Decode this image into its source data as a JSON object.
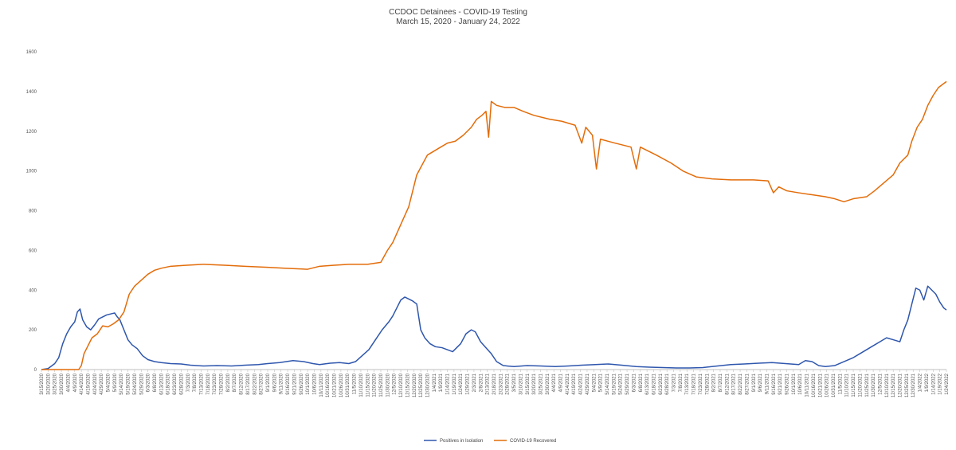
{
  "chart_data": {
    "type": "line",
    "title": "CCDOC Detainees - COVID-19 Testing",
    "subtitle": "March 15, 2020 - January 24, 2022",
    "xlabel": "",
    "ylabel": "",
    "x_range": [
      "3/15/2020",
      "1/24/2022"
    ],
    "ylim": [
      0,
      1600
    ],
    "y_ticks": [
      "0",
      "200",
      "400",
      "600",
      "800",
      "1000",
      "1200",
      "1400",
      "1600"
    ],
    "grid": false,
    "legend_position": "bottom",
    "x_tick_labels": [
      "3/15/2020",
      "3/20/2020",
      "3/25/2020",
      "3/30/2020",
      "4/4/2020",
      "4/9/2020",
      "4/14/2020",
      "4/19/2020",
      "4/24/2020",
      "4/29/2020",
      "5/4/2020",
      "5/9/2020",
      "5/14/2020",
      "5/19/2020",
      "5/24/2020",
      "5/29/2020",
      "6/3/2020",
      "6/8/2020",
      "6/13/2020",
      "6/18/2020",
      "6/23/2020",
      "6/28/2020",
      "7/3/2020",
      "7/8/2020",
      "7/13/2020",
      "7/18/2020",
      "7/23/2020",
      "7/28/2020",
      "8/2/2020",
      "8/7/2020",
      "8/12/2020",
      "8/17/2020",
      "8/22/2020",
      "8/27/2020",
      "9/1/2020",
      "9/6/2020",
      "9/11/2020",
      "9/16/2020",
      "9/21/2020",
      "9/26/2020",
      "10/1/2020",
      "10/6/2020",
      "10/11/2020",
      "10/16/2020",
      "10/21/2020",
      "10/26/2020",
      "10/31/2020",
      "11/5/2020",
      "11/10/2020",
      "11/15/2020",
      "11/20/2020",
      "11/25/2020",
      "11/30/2020",
      "12/5/2020",
      "12/10/2020",
      "12/15/2020",
      "12/20/2020",
      "12/25/2020",
      "12/30/2020",
      "1/4/2021",
      "1/9/2021",
      "1/14/2021",
      "1/19/2021",
      "1/24/2021",
      "1/29/2021",
      "2/3/2021",
      "2/8/2021",
      "2/13/2021",
      "2/18/2021",
      "2/23/2021",
      "2/28/2021",
      "3/5/2021",
      "3/10/2021",
      "3/15/2021",
      "3/20/2021",
      "3/25/2021",
      "3/30/2021",
      "4/4/2021",
      "4/9/2021",
      "4/14/2021",
      "4/19/2021",
      "4/24/2021",
      "4/29/2021",
      "5/4/2021",
      "5/9/2021",
      "5/14/2021",
      "5/19/2021",
      "5/24/2021",
      "5/29/2021",
      "6/3/2021",
      "6/8/2021",
      "6/13/2021",
      "6/18/2021",
      "6/23/2021",
      "6/28/2021",
      "7/3/2021",
      "7/8/2021",
      "7/13/2021",
      "7/18/2021",
      "7/23/2021",
      "7/28/2021",
      "8/2/2021",
      "8/7/2021",
      "8/12/2021",
      "8/17/2021",
      "8/22/2021",
      "8/27/2021",
      "9/1/2021",
      "9/6/2021",
      "9/11/2021",
      "9/16/2021",
      "9/21/2021",
      "9/26/2021",
      "10/1/2021",
      "10/6/2021",
      "10/11/2021",
      "10/16/2021",
      "10/21/2021",
      "10/26/2021",
      "10/31/2021",
      "11/5/2021",
      "11/10/2021",
      "11/15/2021",
      "11/20/2021",
      "11/25/2021",
      "11/30/2021",
      "12/5/2021",
      "12/10/2021",
      "12/15/2021",
      "12/20/2021",
      "12/25/2021",
      "12/30/2021",
      "1/4/2022",
      "1/9/2022",
      "1/14/2022",
      "1/19/2022",
      "1/24/2022"
    ],
    "series": [
      {
        "name": "Positives in Isolation",
        "color": "#2e56ad",
        "points": [
          [
            "3/15/2020",
            0
          ],
          [
            "3/20/2020",
            5
          ],
          [
            "3/25/2020",
            30
          ],
          [
            "3/28/2020",
            60
          ],
          [
            "3/31/2020",
            130
          ],
          [
            "4/3/2020",
            180
          ],
          [
            "4/6/2020",
            215
          ],
          [
            "4/9/2020",
            240
          ],
          [
            "4/11/2020",
            290
          ],
          [
            "4/13/2020",
            305
          ],
          [
            "4/15/2020",
            250
          ],
          [
            "4/18/2020",
            215
          ],
          [
            "4/21/2020",
            200
          ],
          [
            "4/24/2020",
            225
          ],
          [
            "4/27/2020",
            255
          ],
          [
            "4/30/2020",
            265
          ],
          [
            "5/3/2020",
            275
          ],
          [
            "5/6/2020",
            280
          ],
          [
            "5/9/2020",
            285
          ],
          [
            "5/11/2020",
            265
          ],
          [
            "5/13/2020",
            250
          ],
          [
            "5/16/2020",
            200
          ],
          [
            "5/19/2020",
            150
          ],
          [
            "5/22/2020",
            125
          ],
          [
            "5/26/2020",
            105
          ],
          [
            "5/30/2020",
            70
          ],
          [
            "6/3/2020",
            50
          ],
          [
            "6/8/2020",
            40
          ],
          [
            "6/13/2020",
            35
          ],
          [
            "6/20/2020",
            30
          ],
          [
            "6/28/2020",
            28
          ],
          [
            "7/5/2020",
            22
          ],
          [
            "7/15/2020",
            18
          ],
          [
            "7/25/2020",
            20
          ],
          [
            "8/5/2020",
            18
          ],
          [
            "8/15/2020",
            22
          ],
          [
            "8/25/2020",
            25
          ],
          [
            "9/1/2020",
            30
          ],
          [
            "9/10/2020",
            35
          ],
          [
            "9/20/2020",
            45
          ],
          [
            "9/28/2020",
            40
          ],
          [
            "10/5/2020",
            30
          ],
          [
            "10/10/2020",
            25
          ],
          [
            "10/18/2020",
            32
          ],
          [
            "10/25/2020",
            35
          ],
          [
            "11/1/2020",
            30
          ],
          [
            "11/6/2020",
            40
          ],
          [
            "11/11/2020",
            70
          ],
          [
            "11/16/2020",
            100
          ],
          [
            "11/21/2020",
            150
          ],
          [
            "11/26/2020",
            200
          ],
          [
            "12/1/2020",
            240
          ],
          [
            "12/4/2020",
            270
          ],
          [
            "12/7/2020",
            310
          ],
          [
            "12/10/2020",
            350
          ],
          [
            "12/13/2020",
            365
          ],
          [
            "12/16/2020",
            355
          ],
          [
            "12/19/2020",
            345
          ],
          [
            "12/22/2020",
            330
          ],
          [
            "12/25/2020",
            200
          ],
          [
            "12/28/2020",
            160
          ],
          [
            "1/1/2021",
            130
          ],
          [
            "1/5/2021",
            115
          ],
          [
            "1/10/2021",
            110
          ],
          [
            "1/14/2021",
            100
          ],
          [
            "1/18/2021",
            90
          ],
          [
            "1/21/2021",
            110
          ],
          [
            "1/24/2021",
            130
          ],
          [
            "1/28/2021",
            180
          ],
          [
            "2/1/2021",
            200
          ],
          [
            "2/4/2021",
            190
          ],
          [
            "2/8/2021",
            140
          ],
          [
            "2/12/2021",
            110
          ],
          [
            "2/16/2021",
            80
          ],
          [
            "2/20/2021",
            40
          ],
          [
            "2/25/2021",
            20
          ],
          [
            "3/5/2021",
            15
          ],
          [
            "3/15/2021",
            20
          ],
          [
            "3/25/2021",
            18
          ],
          [
            "4/5/2021",
            15
          ],
          [
            "4/15/2021",
            18
          ],
          [
            "4/25/2021",
            22
          ],
          [
            "5/5/2021",
            25
          ],
          [
            "5/15/2021",
            28
          ],
          [
            "5/25/2021",
            22
          ],
          [
            "6/5/2021",
            15
          ],
          [
            "6/15/2021",
            12
          ],
          [
            "6/25/2021",
            10
          ],
          [
            "7/5/2021",
            8
          ],
          [
            "7/15/2021",
            8
          ],
          [
            "7/25/2021",
            10
          ],
          [
            "8/5/2021",
            18
          ],
          [
            "8/15/2021",
            25
          ],
          [
            "8/25/2021",
            28
          ],
          [
            "9/5/2021",
            32
          ],
          [
            "9/15/2021",
            35
          ],
          [
            "9/25/2021",
            30
          ],
          [
            "10/5/2021",
            25
          ],
          [
            "10/10/2021",
            45
          ],
          [
            "10/15/2021",
            40
          ],
          [
            "10/20/2021",
            20
          ],
          [
            "10/25/2021",
            15
          ],
          [
            "11/1/2021",
            20
          ],
          [
            "11/8/2021",
            40
          ],
          [
            "11/15/2021",
            60
          ],
          [
            "11/20/2021",
            80
          ],
          [
            "11/25/2021",
            100
          ],
          [
            "11/30/2021",
            120
          ],
          [
            "12/5/2021",
            140
          ],
          [
            "12/10/2021",
            160
          ],
          [
            "12/15/2021",
            150
          ],
          [
            "12/20/2021",
            140
          ],
          [
            "12/23/2021",
            200
          ],
          [
            "12/26/2021",
            250
          ],
          [
            "12/29/2021",
            330
          ],
          [
            "1/1/2022",
            410
          ],
          [
            "1/4/2022",
            400
          ],
          [
            "1/7/2022",
            350
          ],
          [
            "1/10/2022",
            420
          ],
          [
            "1/13/2022",
            400
          ],
          [
            "1/16/2022",
            380
          ],
          [
            "1/19/2022",
            340
          ],
          [
            "1/22/2022",
            310
          ],
          [
            "1/24/2022",
            300
          ]
        ]
      },
      {
        "name": "COVID-19 Recovered",
        "color": "#e36c09",
        "points": [
          [
            "3/15/2020",
            0
          ],
          [
            "4/12/2020",
            0
          ],
          [
            "4/14/2020",
            20
          ],
          [
            "4/16/2020",
            80
          ],
          [
            "4/19/2020",
            120
          ],
          [
            "4/22/2020",
            160
          ],
          [
            "4/26/2020",
            180
          ],
          [
            "4/30/2020",
            220
          ],
          [
            "5/4/2020",
            215
          ],
          [
            "5/8/2020",
            230
          ],
          [
            "5/12/2020",
            250
          ],
          [
            "5/16/2020",
            290
          ],
          [
            "5/20/2020",
            380
          ],
          [
            "5/24/2020",
            420
          ],
          [
            "5/29/2020",
            450
          ],
          [
            "6/3/2020",
            480
          ],
          [
            "6/8/2020",
            500
          ],
          [
            "6/13/2020",
            510
          ],
          [
            "6/20/2020",
            520
          ],
          [
            "7/1/2020",
            525
          ],
          [
            "7/15/2020",
            530
          ],
          [
            "8/1/2020",
            525
          ],
          [
            "8/15/2020",
            520
          ],
          [
            "9/1/2020",
            515
          ],
          [
            "9/15/2020",
            510
          ],
          [
            "10/1/2020",
            505
          ],
          [
            "10/10/2020",
            520
          ],
          [
            "10/20/2020",
            525
          ],
          [
            "11/1/2020",
            530
          ],
          [
            "11/15/2020",
            530
          ],
          [
            "11/25/2020",
            540
          ],
          [
            "11/30/2020",
            600
          ],
          [
            "12/4/2020",
            640
          ],
          [
            "12/8/2020",
            700
          ],
          [
            "12/12/2020",
            760
          ],
          [
            "12/16/2020",
            820
          ],
          [
            "12/19/2020",
            900
          ],
          [
            "12/22/2020",
            980
          ],
          [
            "12/26/2020",
            1030
          ],
          [
            "12/30/2020",
            1080
          ],
          [
            "1/4/2021",
            1100
          ],
          [
            "1/9/2021",
            1120
          ],
          [
            "1/14/2021",
            1140
          ],
          [
            "1/20/2021",
            1150
          ],
          [
            "1/26/2021",
            1180
          ],
          [
            "2/1/2021",
            1220
          ],
          [
            "2/5/2021",
            1260
          ],
          [
            "2/9/2021",
            1280
          ],
          [
            "2/12/2021",
            1300
          ],
          [
            "2/14/2021",
            1170
          ],
          [
            "2/16/2021",
            1350
          ],
          [
            "2/20/2021",
            1330
          ],
          [
            "2/26/2021",
            1320
          ],
          [
            "3/5/2021",
            1320
          ],
          [
            "3/12/2021",
            1300
          ],
          [
            "3/20/2021",
            1280
          ],
          [
            "4/1/2021",
            1260
          ],
          [
            "4/10/2021",
            1250
          ],
          [
            "4/20/2021",
            1230
          ],
          [
            "4/25/2021",
            1140
          ],
          [
            "4/28/2021",
            1220
          ],
          [
            "5/3/2021",
            1180
          ],
          [
            "5/6/2021",
            1010
          ],
          [
            "5/9/2021",
            1160
          ],
          [
            "5/20/2021",
            1140
          ],
          [
            "6/1/2021",
            1120
          ],
          [
            "6/5/2021",
            1010
          ],
          [
            "6/8/2021",
            1120
          ],
          [
            "6/20/2021",
            1080
          ],
          [
            "7/1/2021",
            1040
          ],
          [
            "7/10/2021",
            1000
          ],
          [
            "7/20/2021",
            970
          ],
          [
            "8/1/2021",
            960
          ],
          [
            "8/15/2021",
            955
          ],
          [
            "9/1/2021",
            955
          ],
          [
            "9/12/2021",
            950
          ],
          [
            "9/16/2021",
            890
          ],
          [
            "9/20/2021",
            920
          ],
          [
            "9/26/2021",
            900
          ],
          [
            "10/5/2021",
            890
          ],
          [
            "10/15/2021",
            880
          ],
          [
            "10/25/2021",
            870
          ],
          [
            "11/1/2021",
            860
          ],
          [
            "11/8/2021",
            845
          ],
          [
            "11/15/2021",
            860
          ],
          [
            "11/25/2021",
            870
          ],
          [
            "12/1/2021",
            900
          ],
          [
            "12/8/2021",
            940
          ],
          [
            "12/15/2021",
            980
          ],
          [
            "12/20/2021",
            1040
          ],
          [
            "12/26/2021",
            1080
          ],
          [
            "12/29/2021",
            1150
          ],
          [
            "1/2/2022",
            1220
          ],
          [
            "1/6/2022",
            1260
          ],
          [
            "1/10/2022",
            1330
          ],
          [
            "1/14/2022",
            1380
          ],
          [
            "1/18/2022",
            1420
          ],
          [
            "1/22/2022",
            1440
          ],
          [
            "1/24/2022",
            1450
          ]
        ]
      }
    ]
  }
}
